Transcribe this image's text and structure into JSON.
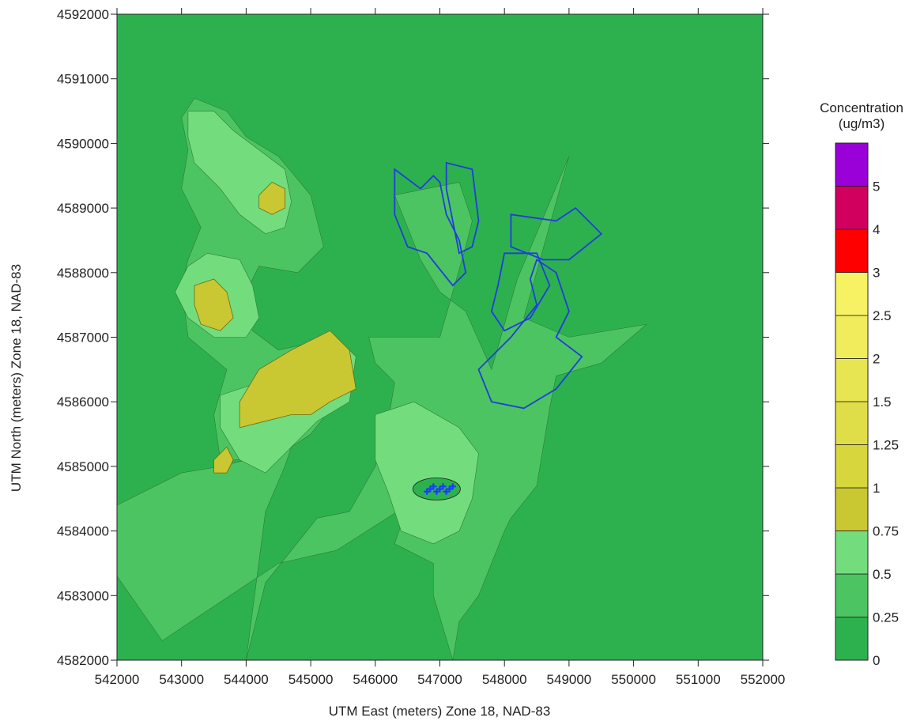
{
  "chart_data": {
    "type": "contour",
    "xlabel": "UTM East (meters) Zone 18, NAD-83",
    "ylabel": "UTM North (meters) Zone 18, NAD-83",
    "xlim": [
      542000,
      552000
    ],
    "ylim": [
      4582000,
      4592000
    ],
    "x_ticks": [
      542000,
      543000,
      544000,
      545000,
      546000,
      547000,
      548000,
      549000,
      550000,
      551000,
      552000
    ],
    "y_ticks": [
      4582000,
      4583000,
      4584000,
      4585000,
      4586000,
      4587000,
      4588000,
      4589000,
      4590000,
      4591000,
      4592000
    ],
    "legend": {
      "title_line1": "Concentration",
      "title_line2": "(ug/m3)",
      "levels": [
        {
          "label": "0",
          "color": "#2db14f"
        },
        {
          "label": "0.25",
          "color": "#4cc462"
        },
        {
          "label": "0.5",
          "color": "#73dd7d"
        },
        {
          "label": "0.75",
          "color": "#c9c832"
        },
        {
          "label": "1",
          "color": "#d7d63c"
        },
        {
          "label": "1.25",
          "color": "#e0de48"
        },
        {
          "label": "1.5",
          "color": "#e8e552"
        },
        {
          "label": "2",
          "color": "#f0ec5c"
        },
        {
          "label": "2.5",
          "color": "#f6f263"
        },
        {
          "label": "3",
          "color": "#ff0000"
        },
        {
          "label": "4",
          "color": "#d1005e"
        },
        {
          "label": "5",
          "color": "#9a00d8"
        }
      ]
    },
    "band_025": [
      [
        544000,
        4582000
      ],
      [
        544300,
        4583200
      ],
      [
        545100,
        4584200
      ],
      [
        545600,
        4584300
      ],
      [
        546000,
        4585000
      ],
      [
        546200,
        4585700
      ],
      [
        546300,
        4586300
      ],
      [
        546000,
        4586600
      ],
      [
        545900,
        4587000
      ],
      [
        547000,
        4587000
      ],
      [
        547400,
        4588400
      ],
      [
        547500,
        4588800
      ],
      [
        547300,
        4589400
      ],
      [
        546300,
        4589200
      ],
      [
        546700,
        4588200
      ],
      [
        547000,
        4587700
      ],
      [
        547400,
        4587400
      ],
      [
        547800,
        4586500
      ],
      [
        548200,
        4587900
      ],
      [
        549000,
        4589800
      ],
      [
        548300,
        4587300
      ],
      [
        549000,
        4587000
      ],
      [
        550200,
        4587200
      ],
      [
        549500,
        4586600
      ],
      [
        548800,
        4586400
      ],
      [
        548700,
        4585900
      ],
      [
        548500,
        4584700
      ],
      [
        548100,
        4584200
      ],
      [
        548000,
        4584000
      ],
      [
        547800,
        4583500
      ],
      [
        547600,
        4583000
      ],
      [
        547300,
        4582600
      ],
      [
        547200,
        4582000
      ],
      [
        546900,
        4583000
      ],
      [
        546900,
        4583500
      ],
      [
        546300,
        4583800
      ],
      [
        546500,
        4584400
      ],
      [
        545400,
        4583700
      ],
      [
        544500,
        4583500
      ],
      [
        543300,
        4582700
      ],
      [
        542700,
        4582300
      ],
      [
        542000,
        4583300
      ],
      [
        542000,
        4583900
      ],
      [
        542000,
        4584400
      ],
      [
        543000,
        4584900
      ],
      [
        543600,
        4585000
      ],
      [
        544000,
        4585100
      ],
      [
        543600,
        4585100
      ],
      [
        543500,
        4585800
      ],
      [
        543700,
        4586500
      ],
      [
        543100,
        4587000
      ],
      [
        543000,
        4587800
      ],
      [
        543100,
        4588200
      ],
      [
        543300,
        4588700
      ],
      [
        543000,
        4589300
      ],
      [
        543100,
        4589900
      ],
      [
        543000,
        4590400
      ],
      [
        543200,
        4590700
      ],
      [
        543700,
        4590500
      ],
      [
        544000,
        4590100
      ],
      [
        544500,
        4589800
      ],
      [
        545000,
        4589200
      ],
      [
        545200,
        4588400
      ],
      [
        544800,
        4588000
      ],
      [
        544200,
        4588100
      ],
      [
        543900,
        4587500
      ],
      [
        544100,
        4587100
      ],
      [
        544500,
        4586800
      ],
      [
        545400,
        4587000
      ],
      [
        545400,
        4586000
      ],
      [
        545000,
        4585500
      ],
      [
        544700,
        4585300
      ],
      [
        544600,
        4585000
      ],
      [
        544300,
        4584300
      ],
      [
        544000,
        4582000
      ]
    ],
    "band_05": [
      [
        543100,
        4590500
      ],
      [
        543500,
        4590500
      ],
      [
        543800,
        4590200
      ],
      [
        544200,
        4589900
      ],
      [
        544600,
        4589600
      ],
      [
        544700,
        4589100
      ],
      [
        544600,
        4588700
      ],
      [
        544300,
        4588600
      ],
      [
        543900,
        4588900
      ],
      [
        543600,
        4589300
      ],
      [
        543200,
        4589700
      ],
      [
        543100,
        4590100
      ],
      [
        543100,
        4590500
      ]
    ],
    "band_05b": [
      [
        546000,
        4585800
      ],
      [
        546600,
        4586000
      ],
      [
        547300,
        4585600
      ],
      [
        547600,
        4585200
      ],
      [
        547500,
        4584500
      ],
      [
        547300,
        4584000
      ],
      [
        546900,
        4583800
      ],
      [
        546400,
        4584000
      ],
      [
        546200,
        4584600
      ],
      [
        546000,
        4585100
      ],
      [
        546000,
        4585800
      ]
    ],
    "band_05c": [
      [
        543400,
        4588300
      ],
      [
        543900,
        4588200
      ],
      [
        544100,
        4587800
      ],
      [
        544200,
        4587300
      ],
      [
        544000,
        4587000
      ],
      [
        543500,
        4587000
      ],
      [
        543100,
        4587300
      ],
      [
        542900,
        4587700
      ],
      [
        543100,
        4588100
      ],
      [
        543400,
        4588300
      ]
    ],
    "band_05d": [
      [
        543600,
        4586100
      ],
      [
        544500,
        4586400
      ],
      [
        545300,
        4587100
      ],
      [
        545700,
        4586700
      ],
      [
        545600,
        4586000
      ],
      [
        545100,
        4585700
      ],
      [
        544700,
        4585300
      ],
      [
        544300,
        4584900
      ],
      [
        543900,
        4585100
      ],
      [
        543600,
        4585600
      ],
      [
        543600,
        4586100
      ]
    ],
    "band_075a": [
      [
        544200,
        4589200
      ],
      [
        544400,
        4589400
      ],
      [
        544600,
        4589300
      ],
      [
        544600,
        4589000
      ],
      [
        544400,
        4588900
      ],
      [
        544200,
        4589000
      ],
      [
        544200,
        4589200
      ]
    ],
    "band_075b": [
      [
        543200,
        4587800
      ],
      [
        543500,
        4587900
      ],
      [
        543700,
        4587700
      ],
      [
        543800,
        4587300
      ],
      [
        543600,
        4587100
      ],
      [
        543300,
        4587200
      ],
      [
        543200,
        4587500
      ],
      [
        543200,
        4587800
      ]
    ],
    "band_075c": [
      [
        543900,
        4586000
      ],
      [
        544200,
        4586500
      ],
      [
        544700,
        4586800
      ],
      [
        545300,
        4587100
      ],
      [
        545600,
        4586800
      ],
      [
        545700,
        4586200
      ],
      [
        545300,
        4586000
      ],
      [
        545000,
        4585800
      ],
      [
        544700,
        4585800
      ],
      [
        544300,
        4585700
      ],
      [
        543900,
        4585600
      ],
      [
        543900,
        4586000
      ]
    ],
    "band_075d": [
      [
        543500,
        4585100
      ],
      [
        543700,
        4585300
      ],
      [
        543800,
        4585100
      ],
      [
        543700,
        4584900
      ],
      [
        543500,
        4584900
      ],
      [
        543500,
        4585100
      ]
    ],
    "boundary_1": [
      [
        546300,
        4589600
      ],
      [
        546700,
        4589300
      ],
      [
        546900,
        4589500
      ],
      [
        547000,
        4589400
      ],
      [
        547100,
        4588900
      ],
      [
        547300,
        4588500
      ],
      [
        547400,
        4588000
      ],
      [
        547200,
        4587800
      ],
      [
        546800,
        4588300
      ],
      [
        546500,
        4588400
      ],
      [
        546300,
        4588900
      ],
      [
        546300,
        4589600
      ]
    ],
    "boundary_2": [
      [
        547100,
        4589700
      ],
      [
        547500,
        4589600
      ],
      [
        547600,
        4588800
      ],
      [
        547500,
        4588400
      ],
      [
        547300,
        4588300
      ],
      [
        547200,
        4588800
      ],
      [
        547100,
        4589300
      ],
      [
        547100,
        4589700
      ]
    ],
    "boundary_3": [
      [
        548100,
        4588900
      ],
      [
        548800,
        4588800
      ],
      [
        549100,
        4589000
      ],
      [
        549500,
        4588600
      ],
      [
        549000,
        4588200
      ],
      [
        548600,
        4588200
      ],
      [
        548100,
        4588400
      ],
      [
        548100,
        4588900
      ]
    ],
    "boundary_4": [
      [
        548000,
        4588300
      ],
      [
        548500,
        4588300
      ],
      [
        548700,
        4587800
      ],
      [
        548400,
        4587300
      ],
      [
        548000,
        4587100
      ],
      [
        547800,
        4587400
      ],
      [
        547900,
        4587800
      ],
      [
        548000,
        4588300
      ]
    ],
    "boundary_5": [
      [
        548500,
        4588200
      ],
      [
        548800,
        4588000
      ],
      [
        549000,
        4587400
      ],
      [
        548800,
        4587000
      ],
      [
        549200,
        4586700
      ],
      [
        548800,
        4586200
      ],
      [
        548300,
        4585900
      ],
      [
        547800,
        4586000
      ],
      [
        547600,
        4586500
      ],
      [
        548100,
        4587000
      ],
      [
        548500,
        4587500
      ],
      [
        548400,
        4587900
      ],
      [
        548500,
        4588200
      ]
    ]
  }
}
